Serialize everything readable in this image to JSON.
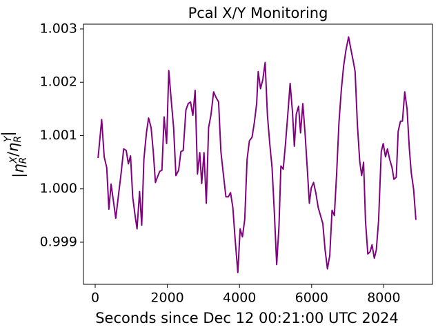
{
  "chart_data": {
    "type": "line",
    "title": "Pcal X/Y Monitoring",
    "xlabel": "Seconds since Dec 12 00:21:00 UTC 2024",
    "ylabel": "|η_R^X/η_R^Y|",
    "xlim": [
      -325,
      9350
    ],
    "ylim": [
      0.99821,
      1.00309
    ],
    "xticks": [
      0,
      2000,
      4000,
      6000,
      8000
    ],
    "yticks": [
      0.999,
      {
        "value": 1,
        "label": "1.000"
      },
      1.001,
      1.002,
      1.003
    ],
    "grid": false,
    "series": [
      {
        "color": "#800080",
        "x": [
          80,
          180,
          250,
          320,
          380,
          440,
          510,
          570,
          640,
          720,
          790,
          860,
          920,
          980,
          1040,
          1110,
          1160,
          1230,
          1290,
          1350,
          1420,
          1480,
          1550,
          1610,
          1670,
          1730,
          1790,
          1850,
          1910,
          1980,
          2040,
          2110,
          2174,
          2238,
          2313,
          2376,
          2440,
          2515,
          2579,
          2643,
          2707,
          2771,
          2835,
          2899,
          2952,
          3016,
          3080,
          3144,
          3208,
          3283,
          3347,
          3421,
          3485,
          3549,
          3624,
          3688,
          3752,
          3816,
          3880,
          3954,
          4018,
          4082,
          4146,
          4210,
          4274,
          4349,
          4413,
          4476,
          4519,
          4583,
          4647,
          4711,
          4775,
          4839,
          4903,
          4967,
          5031,
          5095,
          5148,
          5212,
          5276,
          5351,
          5404,
          5468,
          5521,
          5574,
          5638,
          5692,
          5756,
          5820,
          5873,
          5937,
          5990,
          6054,
          6118,
          6182,
          6246,
          6310,
          6374,
          6438,
          6502,
          6566,
          6630,
          6694,
          6758,
          6822,
          6886,
          6950,
          7024,
          7088,
          7152,
          7205,
          7269,
          7333,
          7387,
          7440,
          7493,
          7557,
          7621,
          7674,
          7738,
          7792,
          7856,
          7930,
          7984,
          8048,
          8101,
          8165,
          8229,
          8282,
          8346,
          8399,
          8463,
          8517,
          8581,
          8645,
          8709,
          8762,
          8826,
          8890
        ],
        "values": [
          1.00058,
          1.0013,
          1.0006,
          1.0004,
          0.99962,
          1.00009,
          0.99975,
          0.99945,
          0.99985,
          1.0003,
          1.00075,
          1.00072,
          1.00047,
          1.00062,
          0.99985,
          0.99948,
          0.99925,
          0.99995,
          0.99932,
          1.00055,
          1.00105,
          1.00133,
          1.00115,
          1.0007,
          1.00012,
          1.00023,
          1.00033,
          1.00035,
          1.00135,
          1.00085,
          1.00222,
          1.00165,
          1.00115,
          1.00025,
          1.00035,
          1.0007,
          1.00072,
          1.00148,
          1.0016,
          1.00163,
          1.00138,
          1.00185,
          1.00028,
          1.00068,
          1.0001,
          1.00068,
          0.99973,
          1.00115,
          1.00138,
          1.00182,
          1.00172,
          1.00163,
          1.0007,
          1.0003,
          0.99985,
          0.99985,
          0.99993,
          0.99965,
          0.99905,
          0.99843,
          0.99925,
          0.9991,
          0.99943,
          1.00055,
          1.0009,
          1.00097,
          1.00125,
          1.0016,
          1.0022,
          1.00188,
          1.00205,
          1.00237,
          1.00138,
          1.00085,
          1.0004,
          0.99955,
          0.99858,
          0.9993,
          1.00043,
          1.00037,
          1.00085,
          1.0015,
          1.00198,
          1.00145,
          1.0008,
          1.0014,
          1.00155,
          1.00105,
          1.0016,
          1.00102,
          1.00045,
          0.99973,
          1.00002,
          1.00012,
          0.99992,
          0.99965,
          0.9995,
          0.99935,
          0.99885,
          0.9985,
          0.99875,
          0.9996,
          0.9995,
          1.0003,
          1.00125,
          1.00185,
          1.0023,
          1.0026,
          1.00285,
          1.00262,
          1.0024,
          1.0022,
          1.0012,
          1.00052,
          1.00025,
          1.0005,
          0.9994,
          0.99878,
          0.99882,
          0.99895,
          0.9987,
          0.99885,
          0.9994,
          1.0007,
          1.00085,
          1.0006,
          1.00075,
          1.00055,
          1.0004,
          1.00018,
          1.00022,
          1.00108,
          1.00127,
          1.00127,
          1.00182,
          1.0015,
          1.00075,
          1.0003,
          1.0,
          0.99942
        ]
      }
    ]
  }
}
